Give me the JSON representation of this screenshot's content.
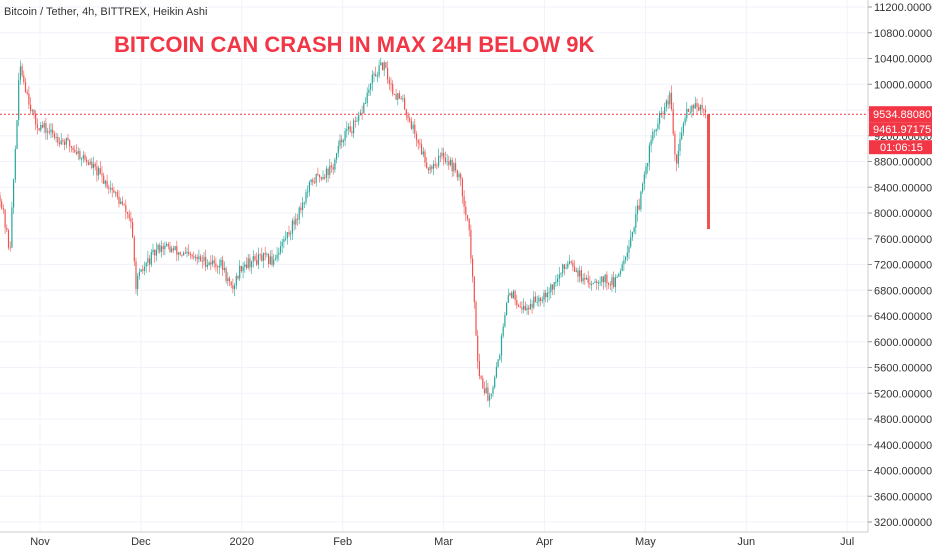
{
  "header": {
    "symbol": "Bitcoin / Tether, 4h, BITTREX, Heikin Ashi",
    "headline": "BITCOIN CAN CRASH IN MAX 24H BELOW 9K"
  },
  "price_tags": {
    "last_price": "9534.88080",
    "second_price": "9461.97175",
    "countdown": "01:06:15"
  },
  "colors": {
    "up": "#26a69a",
    "down": "#ef5350",
    "headline": "#f23645",
    "tag_bg": "#f23645",
    "grid": "#f0f3fa",
    "axis": "#333333"
  },
  "chart_data": {
    "type": "candlestick",
    "title": "BITCOIN CAN CRASH IN MAX 24H BELOW 9K",
    "symbol": "Bitcoin / Tether, 4h, BITTREX, Heikin Ashi",
    "x_ticks": [
      "Nov",
      "Dec",
      "2020",
      "Feb",
      "Mar",
      "Apr",
      "May",
      "Jun",
      "Jul"
    ],
    "y_ticks": [
      "11200.00000",
      "10800.00000",
      "10400.00000",
      "10000.00000",
      "9600.00000",
      "9200.00000",
      "8800.00000",
      "8400.00000",
      "8000.00000",
      "7600.00000",
      "7200.00000",
      "6800.00000",
      "6400.00000",
      "6000.00000",
      "5600.00000",
      "5200.00000",
      "4800.00000",
      "4400.00000",
      "4000.00000",
      "3600.00000",
      "3200.00000"
    ],
    "ylim": [
      3200,
      11200
    ],
    "last_price": 9534.8808,
    "second_price": 9461.97175,
    "grid": true,
    "price_path_month_index": [
      [
        -0.4,
        8300
      ],
      [
        -0.3,
        7400
      ],
      [
        -0.2,
        10300
      ],
      [
        -0.05,
        9400
      ],
      [
        0.1,
        9250
      ],
      [
        0.3,
        9050
      ],
      [
        0.5,
        8750
      ],
      [
        0.7,
        8400
      ],
      [
        0.9,
        7900
      ],
      [
        0.95,
        6900
      ],
      [
        1.05,
        7200
      ],
      [
        1.2,
        7500
      ],
      [
        1.5,
        7300
      ],
      [
        1.8,
        7200
      ],
      [
        1.9,
        6800
      ],
      [
        2.0,
        7200
      ],
      [
        2.2,
        7300
      ],
      [
        2.3,
        7250
      ],
      [
        2.5,
        7800
      ],
      [
        2.7,
        8500
      ],
      [
        2.9,
        8700
      ],
      [
        3.0,
        9200
      ],
      [
        3.15,
        9400
      ],
      [
        3.3,
        10100
      ],
      [
        3.4,
        10300
      ],
      [
        3.5,
        9900
      ],
      [
        3.6,
        9700
      ],
      [
        3.75,
        9100
      ],
      [
        3.85,
        8700
      ],
      [
        4.0,
        8900
      ],
      [
        4.15,
        8600
      ],
      [
        4.25,
        7800
      ],
      [
        4.35,
        5500
      ],
      [
        4.45,
        5100
      ],
      [
        4.55,
        5800
      ],
      [
        4.65,
        6800
      ],
      [
        4.8,
        6500
      ],
      [
        4.95,
        6700
      ],
      [
        5.1,
        6900
      ],
      [
        5.25,
        7300
      ],
      [
        5.4,
        6900
      ],
      [
        5.55,
        7000
      ],
      [
        5.7,
        6900
      ],
      [
        5.85,
        7600
      ],
      [
        5.95,
        8200
      ],
      [
        6.05,
        9100
      ],
      [
        6.15,
        9500
      ],
      [
        6.25,
        9800
      ],
      [
        6.3,
        8700
      ],
      [
        6.4,
        9600
      ],
      [
        6.5,
        9700
      ],
      [
        6.6,
        9500
      ]
    ],
    "final_drop": [
      9534,
      7750
    ]
  }
}
